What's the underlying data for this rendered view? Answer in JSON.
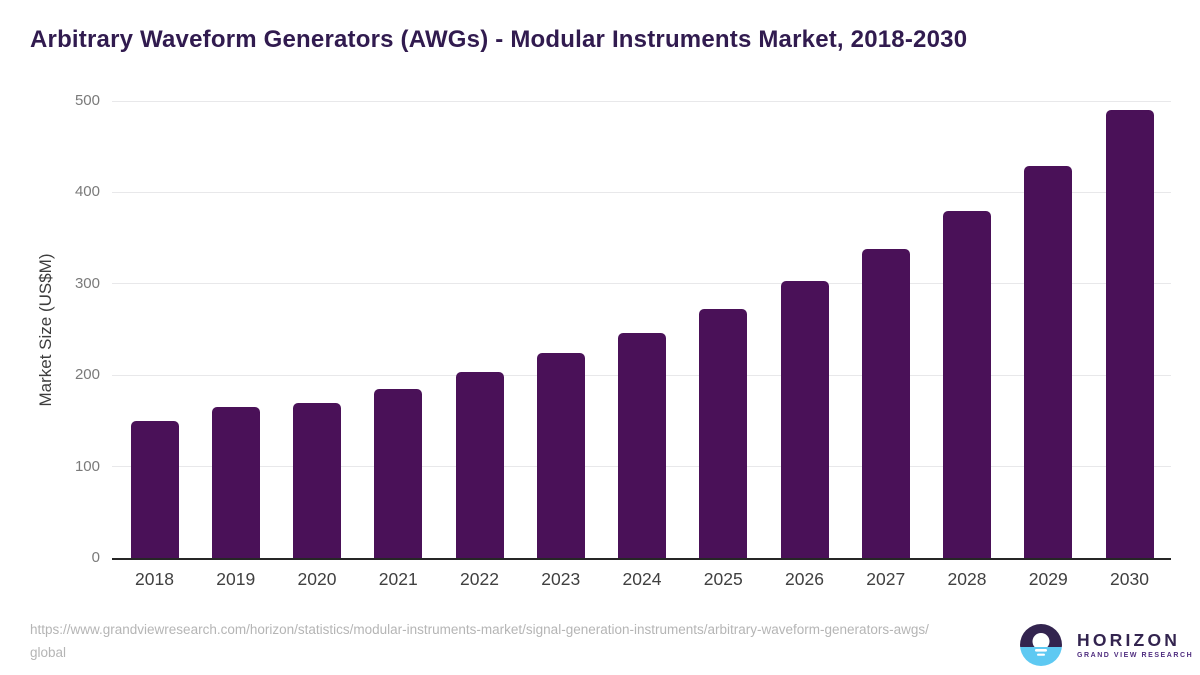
{
  "chart_data": {
    "type": "bar",
    "title": "Arbitrary Waveform Generators (AWGs) - Modular Instruments Market, 2018-2030",
    "xlabel": "",
    "ylabel": "Market Size (US$M)",
    "categories": [
      "2018",
      "2019",
      "2020",
      "2021",
      "2022",
      "2023",
      "2024",
      "2025",
      "2026",
      "2027",
      "2028",
      "2029",
      "2030"
    ],
    "values": [
      150,
      165,
      170,
      185,
      203,
      224,
      246,
      272,
      303,
      338,
      380,
      429,
      490
    ],
    "ylim": [
      0,
      500
    ],
    "yticks": [
      0,
      100,
      200,
      300,
      400,
      500
    ],
    "grid": "horizontal",
    "legend": "none",
    "bar_color": "#4a1158"
  },
  "footer": {
    "source_url": "https://www.grandviewresearch.com/horizon/statistics/modular-instruments-market/signal-generation-instruments/arbitrary-waveform-generators-awgs/global"
  },
  "logo": {
    "wordmark": "HORIZON",
    "subtitle": "GRAND VIEW RESEARCH",
    "colors": {
      "navy": "#33244f",
      "sky": "#5ec9f2",
      "sun": "#ffffff"
    }
  },
  "colors": {
    "title": "#311b4f",
    "bar": "#4a1158",
    "axis_line": "#262626",
    "gridline": "#e8e8ea",
    "y_tick_text": "#7a7a7a",
    "x_tick_text": "#404040",
    "url_text": "#b5b5b5"
  }
}
